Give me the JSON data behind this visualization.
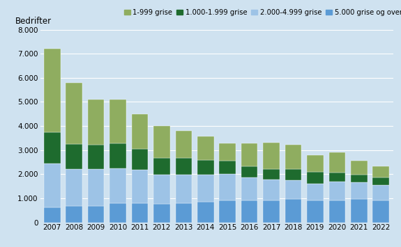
{
  "years": [
    2007,
    2008,
    2009,
    2010,
    2011,
    2012,
    2013,
    2014,
    2015,
    2016,
    2017,
    2018,
    2019,
    2020,
    2021,
    2022
  ],
  "series": {
    "5000_og_over": [
      620,
      670,
      680,
      800,
      800,
      770,
      790,
      840,
      900,
      920,
      900,
      960,
      900,
      920,
      960,
      900
    ],
    "2000_4999": [
      1830,
      1540,
      1530,
      1430,
      1390,
      1220,
      1200,
      1140,
      1100,
      950,
      870,
      800,
      710,
      760,
      710,
      650
    ],
    "1000_1999": [
      1290,
      1050,
      1010,
      1050,
      860,
      690,
      670,
      610,
      550,
      450,
      430,
      460,
      480,
      390,
      310,
      310
    ],
    "1_999": [
      3460,
      2540,
      1880,
      1820,
      1450,
      1330,
      1140,
      970,
      720,
      960,
      1120,
      1010,
      710,
      820,
      580,
      480
    ]
  },
  "colors": {
    "5000_og_over": "#5b9bd5",
    "2000_4999": "#9dc3e6",
    "1000_1999": "#1e6b2e",
    "1_999": "#8fad60"
  },
  "legend_labels": {
    "1_999": "1-999 grise",
    "1000_1999": "1.000-1.999 grise",
    "2000_4999": "2.000-4.999 grise",
    "5000_og_over": "5.000 grise og over"
  },
  "ylabel": "Bedrifter",
  "ylim": [
    0,
    8000
  ],
  "yticks": [
    0,
    1000,
    2000,
    3000,
    4000,
    5000,
    6000,
    7000,
    8000
  ],
  "ytick_labels": [
    "0",
    "1.000",
    "2.000",
    "3.000",
    "4.000",
    "5.000",
    "6.000",
    "7.000",
    "8.000"
  ],
  "background_color": "#cfe2f0",
  "grid_color": "#ffffff",
  "axis_fontsize": 7.5,
  "ylabel_fontsize": 8.5,
  "legend_fontsize": 7.2,
  "bar_width": 0.75
}
